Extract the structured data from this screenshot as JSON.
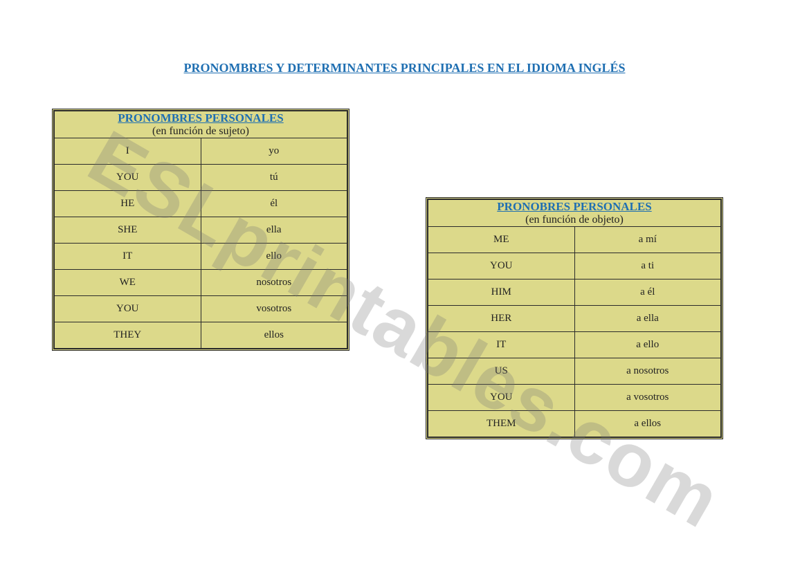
{
  "page": {
    "title": "PRONOMBRES Y DETERMINANTES PRINCIPALES EN EL IDIOMA INGLÉS"
  },
  "watermark": {
    "text": "ESLprintables.com"
  },
  "colors": {
    "title_color": "#1f6fb2",
    "table_bg": "#dcd98a",
    "border_color": "#2a2a2a",
    "text_color": "#222222",
    "page_bg": "#ffffff",
    "watermark_color": "rgba(120,120,120,0.28)"
  },
  "table_left": {
    "header_title": "PRONOMBRES PERSONALES",
    "header_sub": "(en función de sujeto)",
    "rows": [
      {
        "en": "I",
        "es": "yo"
      },
      {
        "en": "YOU",
        "es": "tú"
      },
      {
        "en": "HE",
        "es": "él"
      },
      {
        "en": "SHE",
        "es": "ella"
      },
      {
        "en": "IT",
        "es": "ello"
      },
      {
        "en": "WE",
        "es": "nosotros"
      },
      {
        "en": "YOU",
        "es": "vosotros"
      },
      {
        "en": "THEY",
        "es": "ellos"
      }
    ]
  },
  "table_right": {
    "header_title": "PRONOBRES PERSONALES",
    "header_sub": "(en función de objeto)",
    "rows": [
      {
        "en": "ME",
        "es": "a mí"
      },
      {
        "en": "YOU",
        "es": "a ti"
      },
      {
        "en": "HIM",
        "es": "a él"
      },
      {
        "en": "HER",
        "es": "a ella"
      },
      {
        "en": "IT",
        "es": "a ello"
      },
      {
        "en": "US",
        "es": "a nosotros"
      },
      {
        "en": "YOU",
        "es": "a vosotros"
      },
      {
        "en": "THEM",
        "es": "a ellos"
      }
    ]
  }
}
